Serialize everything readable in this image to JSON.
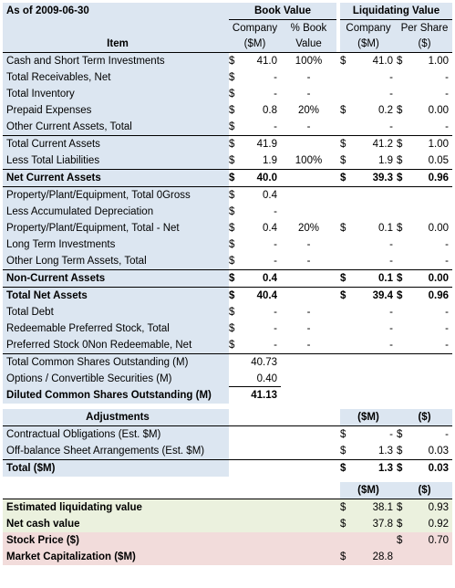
{
  "header": {
    "as_of": "As of 2009-06-30",
    "book_value": "Book Value",
    "liquidating_value": "Liquidating Value",
    "item": "Item",
    "col_company_1": "Company",
    "col_company_1b": "($M)",
    "col_pct_book_1": "% Book",
    "col_pct_book_1b": "Value",
    "col_company_2": "Company",
    "col_company_2b": "($M)",
    "col_per_share_1": "Per Share",
    "col_per_share_1b": "($)"
  },
  "rows": [
    {
      "label": "Cash and Short Term Investments",
      "d1": "$",
      "bv": "41.0",
      "pct": "100%",
      "d2": "$",
      "lv": "41.0",
      "d3": "$",
      "ps": "1.00"
    },
    {
      "label": "Total Receivables, Net",
      "d1": "$",
      "bv": "-",
      "pct": "-",
      "d2": "",
      "lv": "-",
      "d3": "",
      "ps": "-"
    },
    {
      "label": "Total Inventory",
      "d1": "$",
      "bv": "-",
      "pct": "-",
      "d2": "",
      "lv": "-",
      "d3": "",
      "ps": "-"
    },
    {
      "label": "Prepaid Expenses",
      "d1": "$",
      "bv": "0.8",
      "pct": "20%",
      "d2": "$",
      "lv": "0.2",
      "d3": "$",
      "ps": "0.00"
    },
    {
      "label": "Other Current Assets, Total",
      "d1": "$",
      "bv": "-",
      "pct": "-",
      "d2": "",
      "lv": "-",
      "d3": "",
      "ps": "-"
    },
    {
      "label": "Total Current Assets",
      "d1": "$",
      "bv": "41.9",
      "pct": "",
      "d2": "$",
      "lv": "41.2",
      "d3": "$",
      "ps": "1.00"
    },
    {
      "label": "Less Total Liabilities",
      "d1": "$",
      "bv": "1.9",
      "pct": "100%",
      "d2": "$",
      "lv": "1.9",
      "d3": "$",
      "ps": "0.05"
    },
    {
      "label": "Net Current Assets",
      "d1": "$",
      "bv": "40.0",
      "pct": "",
      "d2": "$",
      "lv": "39.3",
      "d3": "$",
      "ps": "0.96"
    },
    {
      "label": "Property/Plant/Equipment, Total 0Gross",
      "d1": "$",
      "bv": "0.4",
      "pct": "",
      "d2": "",
      "lv": "",
      "d3": "",
      "ps": ""
    },
    {
      "label": "Less Accumulated Depreciation",
      "d1": "$",
      "bv": "-",
      "pct": "",
      "d2": "",
      "lv": "",
      "d3": "",
      "ps": ""
    },
    {
      "label": "Property/Plant/Equipment, Total - Net",
      "d1": "$",
      "bv": "0.4",
      "pct": "20%",
      "d2": "$",
      "lv": "0.1",
      "d3": "$",
      "ps": "0.00"
    },
    {
      "label": "Long Term Investments",
      "d1": "$",
      "bv": "-",
      "pct": "-",
      "d2": "",
      "lv": "-",
      "d3": "",
      "ps": "-"
    },
    {
      "label": "Other Long Term Assets, Total",
      "d1": "$",
      "bv": "-",
      "pct": "-",
      "d2": "",
      "lv": "-",
      "d3": "",
      "ps": "-"
    },
    {
      "label": "Non-Current Assets",
      "d1": "$",
      "bv": "0.4",
      "pct": "",
      "d2": "$",
      "lv": "0.1",
      "d3": "$",
      "ps": "0.00"
    },
    {
      "label": "Total Net Assets",
      "d1": "$",
      "bv": "40.4",
      "pct": "",
      "d2": "$",
      "lv": "39.4",
      "d3": "$",
      "ps": "0.96"
    },
    {
      "label": "Total Debt",
      "d1": "$",
      "bv": "-",
      "pct": "-",
      "d2": "",
      "lv": "-",
      "d3": "",
      "ps": "-"
    },
    {
      "label": "Redeemable Preferred Stock, Total",
      "d1": "$",
      "bv": "-",
      "pct": "-",
      "d2": "",
      "lv": "-",
      "d3": "",
      "ps": "-"
    },
    {
      "label": "Preferred Stock 0Non Redeemable, Net",
      "d1": "$",
      "bv": "-",
      "pct": "-",
      "d2": "",
      "lv": "-",
      "d3": "",
      "ps": "-"
    }
  ],
  "shares": [
    {
      "label": "Total Common Shares Outstanding (M)",
      "value": "40.73"
    },
    {
      "label": "Options / Convertible Securities (M)",
      "value": "0.40"
    },
    {
      "label": "Diluted Common Shares Outstanding (M)",
      "value": "41.13"
    }
  ],
  "adjustments": {
    "title": "Adjustments",
    "col_m": "($M)",
    "col_d": "($)",
    "rows": [
      {
        "label": "Contractual Obligations (Est. $M)",
        "d2": "$",
        "m": "-",
        "d3": "$",
        "v": "-"
      },
      {
        "label": "Off-balance Sheet Arrangements (Est. $M)",
        "d2": "$",
        "m": "1.3",
        "d3": "$",
        "v": "0.03"
      },
      {
        "label": "Total ($M)",
        "d2": "$",
        "m": "1.3",
        "d3": "$",
        "v": "0.03"
      }
    ]
  },
  "summary": {
    "col_m": "($M)",
    "col_d": "($)",
    "rows": [
      {
        "label": "Estimated liquidating value",
        "d2": "$",
        "m": "38.1",
        "d3": "$",
        "v": "0.93"
      },
      {
        "label": "Net cash value",
        "d2": "$",
        "m": "37.8",
        "d3": "$",
        "v": "0.92"
      },
      {
        "label": "Stock Price ($)",
        "d2": "",
        "m": "",
        "d3": "$",
        "v": "0.70"
      },
      {
        "label": "Market Capitalization ($M)",
        "d2": "$",
        "m": "28.8",
        "d3": "",
        "v": ""
      }
    ]
  }
}
